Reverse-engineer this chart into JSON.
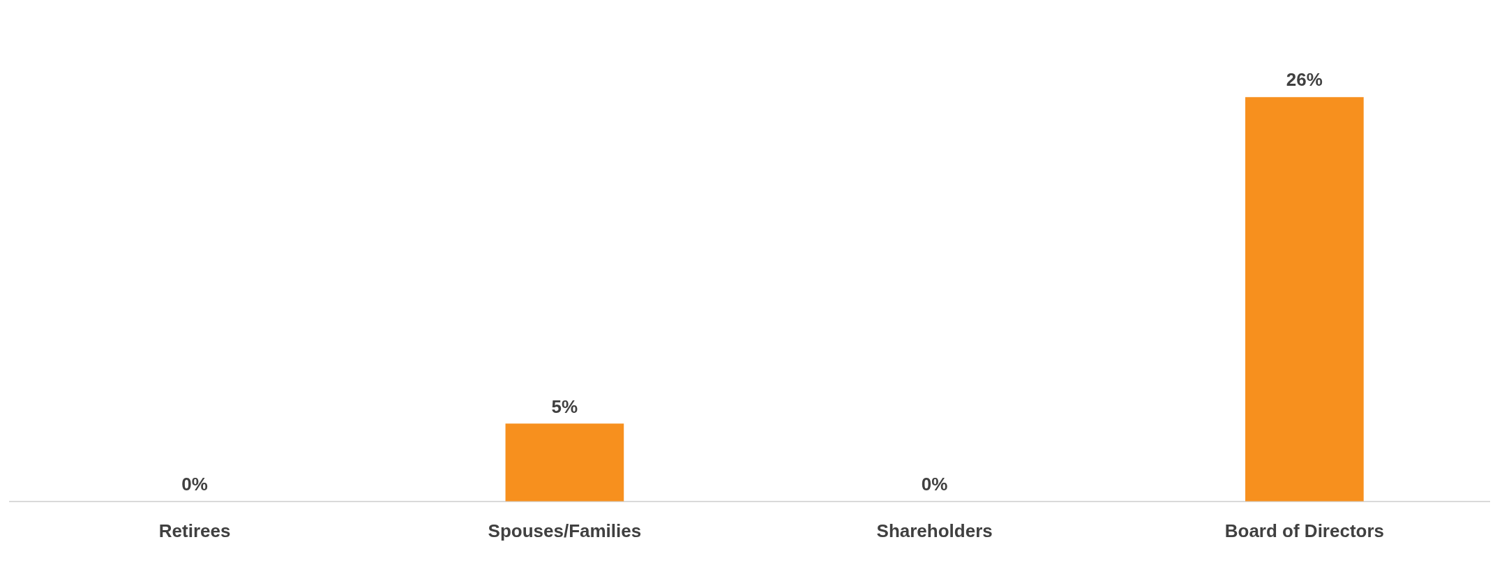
{
  "chart_data": {
    "type": "bar",
    "categories": [
      "Retirees",
      "Spouses/Families",
      "Shareholders",
      "Board of Directors"
    ],
    "values": [
      0,
      5,
      0,
      26
    ],
    "value_labels": [
      "0%",
      "5%",
      "0%",
      "26%"
    ],
    "color": "#f7901e",
    "grid": false,
    "legend": false
  }
}
